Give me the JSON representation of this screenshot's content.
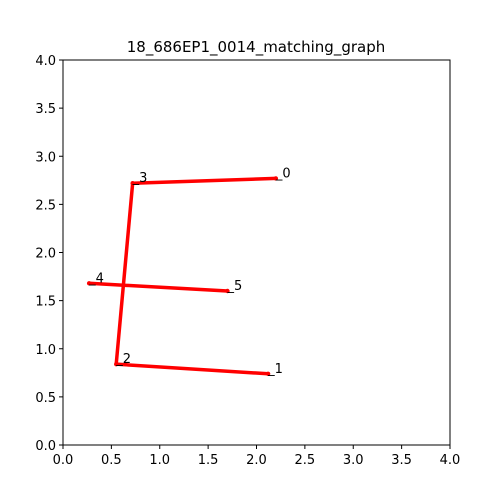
{
  "chart_data": {
    "type": "line",
    "title": "18_686EP1_0014_matching_graph",
    "xlabel": "",
    "ylabel": "",
    "xlim": [
      0.0,
      4.0
    ],
    "ylim": [
      0.0,
      4.0
    ],
    "x_ticks": [
      "0.0",
      "0.5",
      "1.0",
      "1.5",
      "2.0",
      "2.5",
      "3.0",
      "3.5",
      "4.0"
    ],
    "y_ticks": [
      "0.0",
      "0.5",
      "1.0",
      "1.5",
      "2.0",
      "2.5",
      "3.0",
      "3.5",
      "4.0"
    ],
    "grid": false,
    "edge_color": "#ff0000",
    "nodes": [
      {
        "label": "_0",
        "x": 2.2,
        "y": 2.77
      },
      {
        "label": "_1",
        "x": 2.12,
        "y": 0.74
      },
      {
        "label": "_2",
        "x": 0.55,
        "y": 0.84
      },
      {
        "label": "_3",
        "x": 0.72,
        "y": 2.72
      },
      {
        "label": "_4",
        "x": 0.27,
        "y": 1.68
      },
      {
        "label": "_5",
        "x": 1.7,
        "y": 1.6
      }
    ],
    "edges": [
      [
        3,
        0
      ],
      [
        3,
        2
      ],
      [
        2,
        1
      ],
      [
        4,
        5
      ]
    ]
  }
}
